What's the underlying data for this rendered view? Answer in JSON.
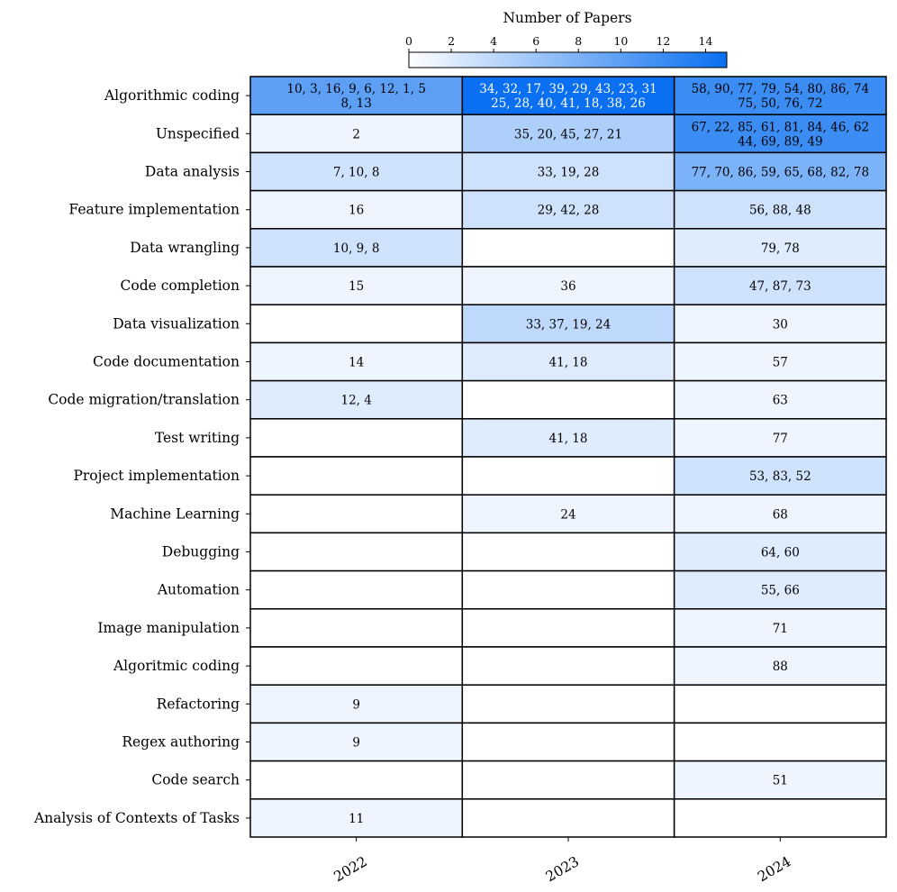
{
  "chart_data": {
    "type": "heatmap",
    "colorbar_title": "Number of Papers",
    "colorbar_ticks": [
      0,
      2,
      4,
      6,
      8,
      10,
      12,
      14
    ],
    "colorbar_range": [
      0,
      15
    ],
    "color_low": "#ffffff",
    "color_high": "#0a6ff0",
    "columns": [
      "2022",
      "2023",
      "2024"
    ],
    "rows": [
      {
        "label": "Algorithmic coding",
        "cells": [
          {
            "text": [
              "10, 3, 16, 9, 6, 12, 1, 5",
              "8, 13"
            ],
            "value": 10
          },
          {
            "text": [
              "34, 32, 17, 39, 29, 43, 23, 31",
              "25, 28, 40, 41, 18, 38, 26"
            ],
            "value": 15
          },
          {
            "text": [
              "58, 90, 77, 79, 54, 80, 86, 74",
              "75, 50, 76, 72"
            ],
            "value": 12
          }
        ]
      },
      {
        "label": "Unspecified",
        "cells": [
          {
            "text": [
              "2"
            ],
            "value": 1
          },
          {
            "text": [
              "35, 20, 45, 27, 21"
            ],
            "value": 5
          },
          {
            "text": [
              "67, 22, 85, 61, 81, 84, 46, 62",
              "44, 69, 89, 49"
            ],
            "value": 12
          }
        ]
      },
      {
        "label": "Data analysis",
        "cells": [
          {
            "text": [
              "7, 10, 8"
            ],
            "value": 3
          },
          {
            "text": [
              "33, 19, 28"
            ],
            "value": 3
          },
          {
            "text": [
              "77, 70, 86, 59, 65, 68, 82, 78"
            ],
            "value": 8
          }
        ]
      },
      {
        "label": "Feature implementation",
        "cells": [
          {
            "text": [
              "16"
            ],
            "value": 1
          },
          {
            "text": [
              "29, 42, 28"
            ],
            "value": 3
          },
          {
            "text": [
              "56, 88, 48"
            ],
            "value": 3
          }
        ]
      },
      {
        "label": "Data wrangling",
        "cells": [
          {
            "text": [
              "10, 9, 8"
            ],
            "value": 3
          },
          {
            "text": [],
            "value": 0
          },
          {
            "text": [
              "79, 78"
            ],
            "value": 2
          }
        ]
      },
      {
        "label": "Code completion",
        "cells": [
          {
            "text": [
              "15"
            ],
            "value": 1
          },
          {
            "text": [
              "36"
            ],
            "value": 1
          },
          {
            "text": [
              "47, 87, 73"
            ],
            "value": 3
          }
        ]
      },
      {
        "label": "Data visualization",
        "cells": [
          {
            "text": [],
            "value": 0
          },
          {
            "text": [
              "33, 37, 19, 24"
            ],
            "value": 4
          },
          {
            "text": [
              "30"
            ],
            "value": 1
          }
        ]
      },
      {
        "label": "Code documentation",
        "cells": [
          {
            "text": [
              "14"
            ],
            "value": 1
          },
          {
            "text": [
              "41, 18"
            ],
            "value": 2
          },
          {
            "text": [
              "57"
            ],
            "value": 1
          }
        ]
      },
      {
        "label": "Code migration/translation",
        "cells": [
          {
            "text": [
              "12, 4"
            ],
            "value": 2
          },
          {
            "text": [],
            "value": 0
          },
          {
            "text": [
              "63"
            ],
            "value": 1
          }
        ]
      },
      {
        "label": "Test writing",
        "cells": [
          {
            "text": [],
            "value": 0
          },
          {
            "text": [
              "41, 18"
            ],
            "value": 2
          },
          {
            "text": [
              "77"
            ],
            "value": 1
          }
        ]
      },
      {
        "label": "Project implementation",
        "cells": [
          {
            "text": [],
            "value": 0
          },
          {
            "text": [],
            "value": 0
          },
          {
            "text": [
              "53, 83, 52"
            ],
            "value": 3
          }
        ]
      },
      {
        "label": "Machine Learning",
        "cells": [
          {
            "text": [],
            "value": 0
          },
          {
            "text": [
              "24"
            ],
            "value": 1
          },
          {
            "text": [
              "68"
            ],
            "value": 1
          }
        ]
      },
      {
        "label": "Debugging",
        "cells": [
          {
            "text": [],
            "value": 0
          },
          {
            "text": [],
            "value": 0
          },
          {
            "text": [
              "64, 60"
            ],
            "value": 2
          }
        ]
      },
      {
        "label": "Automation",
        "cells": [
          {
            "text": [],
            "value": 0
          },
          {
            "text": [],
            "value": 0
          },
          {
            "text": [
              "55, 66"
            ],
            "value": 2
          }
        ]
      },
      {
        "label": "Image manipulation",
        "cells": [
          {
            "text": [],
            "value": 0
          },
          {
            "text": [],
            "value": 0
          },
          {
            "text": [
              "71"
            ],
            "value": 1
          }
        ]
      },
      {
        "label": "Algoritmic coding",
        "cells": [
          {
            "text": [],
            "value": 0
          },
          {
            "text": [],
            "value": 0
          },
          {
            "text": [
              "88"
            ],
            "value": 1
          }
        ]
      },
      {
        "label": "Refactoring",
        "cells": [
          {
            "text": [
              "9"
            ],
            "value": 1
          },
          {
            "text": [],
            "value": 0
          },
          {
            "text": [],
            "value": 0
          }
        ]
      },
      {
        "label": "Regex authoring",
        "cells": [
          {
            "text": [
              "9"
            ],
            "value": 1
          },
          {
            "text": [],
            "value": 0
          },
          {
            "text": [],
            "value": 0
          }
        ]
      },
      {
        "label": "Code search",
        "cells": [
          {
            "text": [],
            "value": 0
          },
          {
            "text": [],
            "value": 0
          },
          {
            "text": [
              "51"
            ],
            "value": 1
          }
        ]
      },
      {
        "label": "Analysis of Contexts of Tasks",
        "cells": [
          {
            "text": [
              "11"
            ],
            "value": 1
          },
          {
            "text": [],
            "value": 0
          },
          {
            "text": [],
            "value": 0
          }
        ]
      }
    ]
  }
}
